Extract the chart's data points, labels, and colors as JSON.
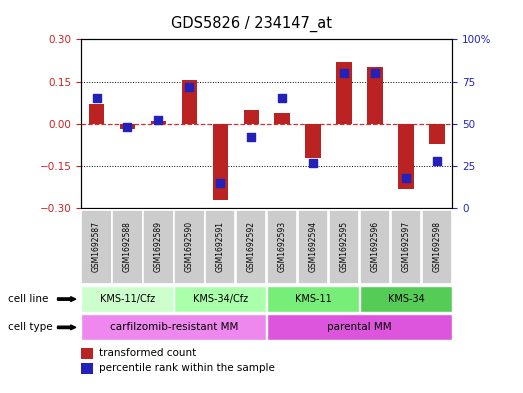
{
  "title": "GDS5826 / 234147_at",
  "samples": [
    "GSM1692587",
    "GSM1692588",
    "GSM1692589",
    "GSM1692590",
    "GSM1692591",
    "GSM1692592",
    "GSM1692593",
    "GSM1692594",
    "GSM1692595",
    "GSM1692596",
    "GSM1692597",
    "GSM1692598"
  ],
  "transformed_counts": [
    0.07,
    -0.02,
    0.01,
    0.155,
    -0.27,
    0.05,
    0.04,
    -0.12,
    0.22,
    0.2,
    -0.23,
    -0.07
  ],
  "percentile_ranks": [
    65,
    48,
    52,
    72,
    15,
    42,
    65,
    27,
    80,
    80,
    18,
    28
  ],
  "ylim_left": [
    -0.3,
    0.3
  ],
  "ylim_right": [
    0,
    100
  ],
  "yticks_left": [
    -0.3,
    -0.15,
    0,
    0.15,
    0.3
  ],
  "yticks_right": [
    0,
    25,
    50,
    75,
    100
  ],
  "bar_color": "#bb2222",
  "dot_color": "#2222bb",
  "zero_line_color": "#cc3333",
  "grid_line_color": "#000000",
  "cell_line_groups": [
    {
      "label": "KMS-11/Cfz",
      "start": 0,
      "end": 3,
      "color": "#ccffcc"
    },
    {
      "label": "KMS-34/Cfz",
      "start": 3,
      "end": 6,
      "color": "#aaffaa"
    },
    {
      "label": "KMS-11",
      "start": 6,
      "end": 9,
      "color": "#77ee77"
    },
    {
      "label": "KMS-34",
      "start": 9,
      "end": 12,
      "color": "#55cc55"
    }
  ],
  "cell_type_groups": [
    {
      "label": "carfilzomib-resistant MM",
      "start": 0,
      "end": 6,
      "color": "#ee88ee"
    },
    {
      "label": "parental MM",
      "start": 6,
      "end": 12,
      "color": "#dd55dd"
    }
  ],
  "legend_items": [
    {
      "label": "transformed count",
      "color": "#bb2222"
    },
    {
      "label": "percentile rank within the sample",
      "color": "#2222bb"
    }
  ],
  "sample_box_color": "#cccccc",
  "cell_line_label": "cell line",
  "cell_type_label": "cell type"
}
